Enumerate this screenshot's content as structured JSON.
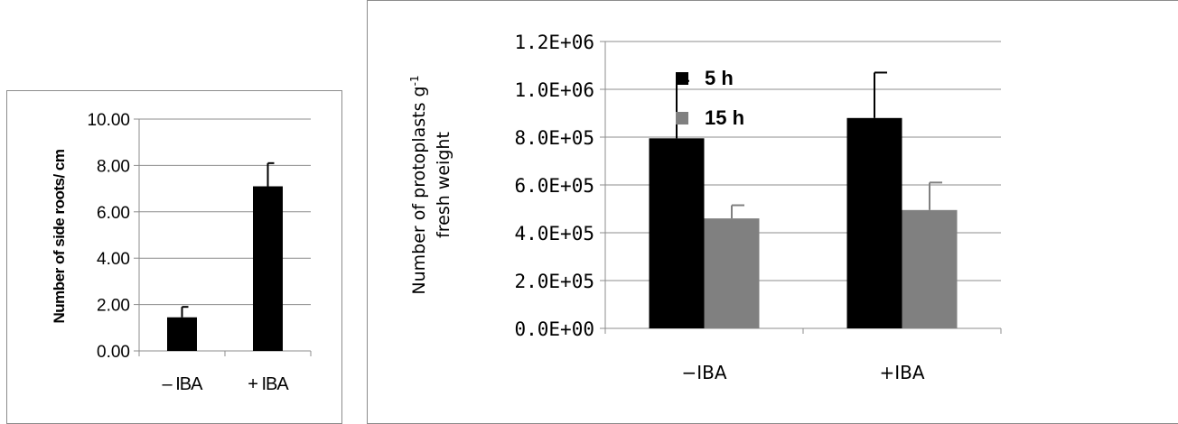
{
  "chart_data": [
    {
      "type": "bar",
      "categories": [
        "– IBA",
        "+ IBA"
      ],
      "values": [
        1.45,
        7.1
      ],
      "errors": [
        0.45,
        1.0
      ],
      "ylabel": "Number of side roots/ cm",
      "yticks": [
        "0.00",
        "2.00",
        "4.00",
        "6.00",
        "8.00",
        "10.00"
      ],
      "ylim": [
        0,
        10
      ],
      "grid": true,
      "colors": {
        "bar": "#000000"
      }
    },
    {
      "type": "bar",
      "categories": [
        "−IBA",
        "+IBA"
      ],
      "series": [
        {
          "name": "5 h",
          "values": [
            795000,
            880000
          ],
          "errors": [
            240000,
            190000
          ],
          "color": "#000000"
        },
        {
          "name": "15 h",
          "values": [
            460000,
            495000
          ],
          "errors": [
            55000,
            115000
          ],
          "color": "#808080"
        }
      ],
      "ylabel": "Number of protoplasts g-1 fresh weight",
      "ylabel_lines": [
        "Number of protoplasts g",
        "fresh weight"
      ],
      "ylabel_superscript": "-1",
      "yticks": [
        "0.0E+00",
        "2.0E+05",
        "4.0E+05",
        "6.0E+05",
        "8.0E+05",
        "1.0E+06",
        "1.2E+06"
      ],
      "ylim": [
        0,
        1200000
      ],
      "grid": true,
      "legend_position": "right"
    }
  ]
}
